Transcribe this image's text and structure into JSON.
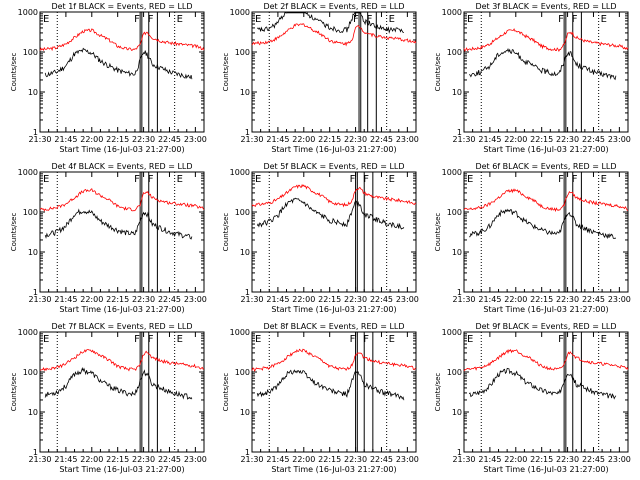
{
  "chart_data": {
    "type": "line",
    "x_ticks": [
      "21:30",
      "21:45",
      "22:00",
      "22:15",
      "22:30",
      "22:45",
      "23:00"
    ],
    "y_ticks": [
      "1",
      "10",
      "100",
      "1000"
    ],
    "y_scale": "log",
    "ylim": [
      1,
      1000
    ],
    "xlim": [
      "21:30",
      "23:05"
    ],
    "grid": false,
    "colors": {
      "events": "#000000",
      "lld": "#ff0000",
      "axes": "#000000"
    },
    "marker_labels": [
      "F",
      "F",
      "E"
    ],
    "panels": [
      {
        "title": "Det 1f BLACK = Events, RED = LLD",
        "xlabel": "Start Time (16-Jul-03 21:27:00)",
        "ylabel": "Counts/sec",
        "variant": 1
      },
      {
        "title": "Det 2f BLACK = Events, RED = LLD",
        "xlabel": "Start Time (16-Jul-03 21:27:00)",
        "ylabel": "Counts/sec",
        "variant": 2
      },
      {
        "title": "Det 3f BLACK = Events, RED = LLD",
        "xlabel": "Start Time (16-Jul-03 21:27:00)",
        "ylabel": "Counts/sec",
        "variant": 3
      },
      {
        "title": "Det 4f BLACK = Events, RED = LLD",
        "xlabel": "Start Time (16-Jul-03 21:27:00)",
        "ylabel": "Counts/sec",
        "variant": 4
      },
      {
        "title": "Det 5f BLACK = Events, RED = LLD",
        "xlabel": "Start Time (16-Jul-03 21:27:00)",
        "ylabel": "Counts/sec",
        "variant": 5
      },
      {
        "title": "Det 6f BLACK = Events, RED = LLD",
        "xlabel": "Start Time (16-Jul-03 21:27:00)",
        "ylabel": "Counts/sec",
        "variant": 6
      },
      {
        "title": "Det 7f BLACK = Events, RED = LLD",
        "xlabel": "Start Time (16-Jul-03 21:27:00)",
        "ylabel": "Counts/sec",
        "variant": 7
      },
      {
        "title": "Det 8f BLACK = Events, RED = LLD",
        "xlabel": "Start Time (16-Jul-03 21:27:00)",
        "ylabel": "Counts/sec",
        "variant": 8
      },
      {
        "title": "Det 9f BLACK = Events, RED = LLD",
        "xlabel": "Start Time (16-Jul-03 21:27:00)",
        "ylabel": "Counts/sec",
        "variant": 9
      }
    ],
    "series": [
      {
        "key": "lld",
        "color": "#ff0000",
        "x": [
          "21:30",
          "21:35",
          "21:40",
          "21:45",
          "21:50",
          "21:55",
          "22:00",
          "22:05",
          "22:10",
          "22:15",
          "22:20",
          "22:25",
          "22:28",
          "22:30",
          "22:32",
          "22:35",
          "22:40",
          "22:45",
          "22:50",
          "22:55",
          "23:00",
          "23:05"
        ],
        "values": [
          115,
          120,
          130,
          160,
          230,
          330,
          350,
          260,
          200,
          140,
          120,
          115,
          150,
          280,
          320,
          230,
          190,
          170,
          160,
          150,
          140,
          120
        ]
      },
      {
        "key": "events",
        "color": "#000000",
        "x": [
          "21:30",
          "21:35",
          "21:40",
          "21:45",
          "21:50",
          "21:55",
          "22:00",
          "22:05",
          "22:10",
          "22:15",
          "22:20",
          "22:25",
          "22:28",
          "22:30",
          "22:32",
          "22:35",
          "22:40",
          "22:45",
          "22:50",
          "22:55",
          "23:00",
          "23:05"
        ],
        "values": [
          25,
          28,
          32,
          45,
          90,
          110,
          95,
          60,
          45,
          35,
          30,
          28,
          60,
          100,
          90,
          50,
          40,
          32,
          28,
          25,
          22,
          20
        ]
      }
    ]
  }
}
